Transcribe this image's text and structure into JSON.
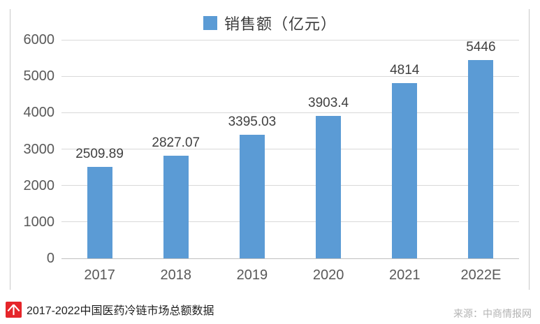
{
  "chart_data": {
    "type": "bar",
    "title": "",
    "legend": "销售额（亿元）",
    "legend_position": "top-center",
    "categories": [
      "2017",
      "2018",
      "2019",
      "2020",
      "2021",
      "2022E"
    ],
    "values": [
      2509.89,
      2827.07,
      3395.03,
      3903.4,
      4814,
      5446
    ],
    "value_labels": [
      "2509.89",
      "2827.07",
      "3395.03",
      "3903.4",
      "4814",
      "5446"
    ],
    "xlabel": "",
    "ylabel": "",
    "ylim": [
      0,
      6000
    ],
    "yticks": [
      0,
      1000,
      2000,
      3000,
      4000,
      5000,
      6000
    ],
    "grid": true,
    "bar_color": "#5b9bd5"
  },
  "footer": {
    "caption": "2017-2022中国医药冷链市场总额数据",
    "source": "来源：中商情报网",
    "logo_color": "#e5252a"
  }
}
